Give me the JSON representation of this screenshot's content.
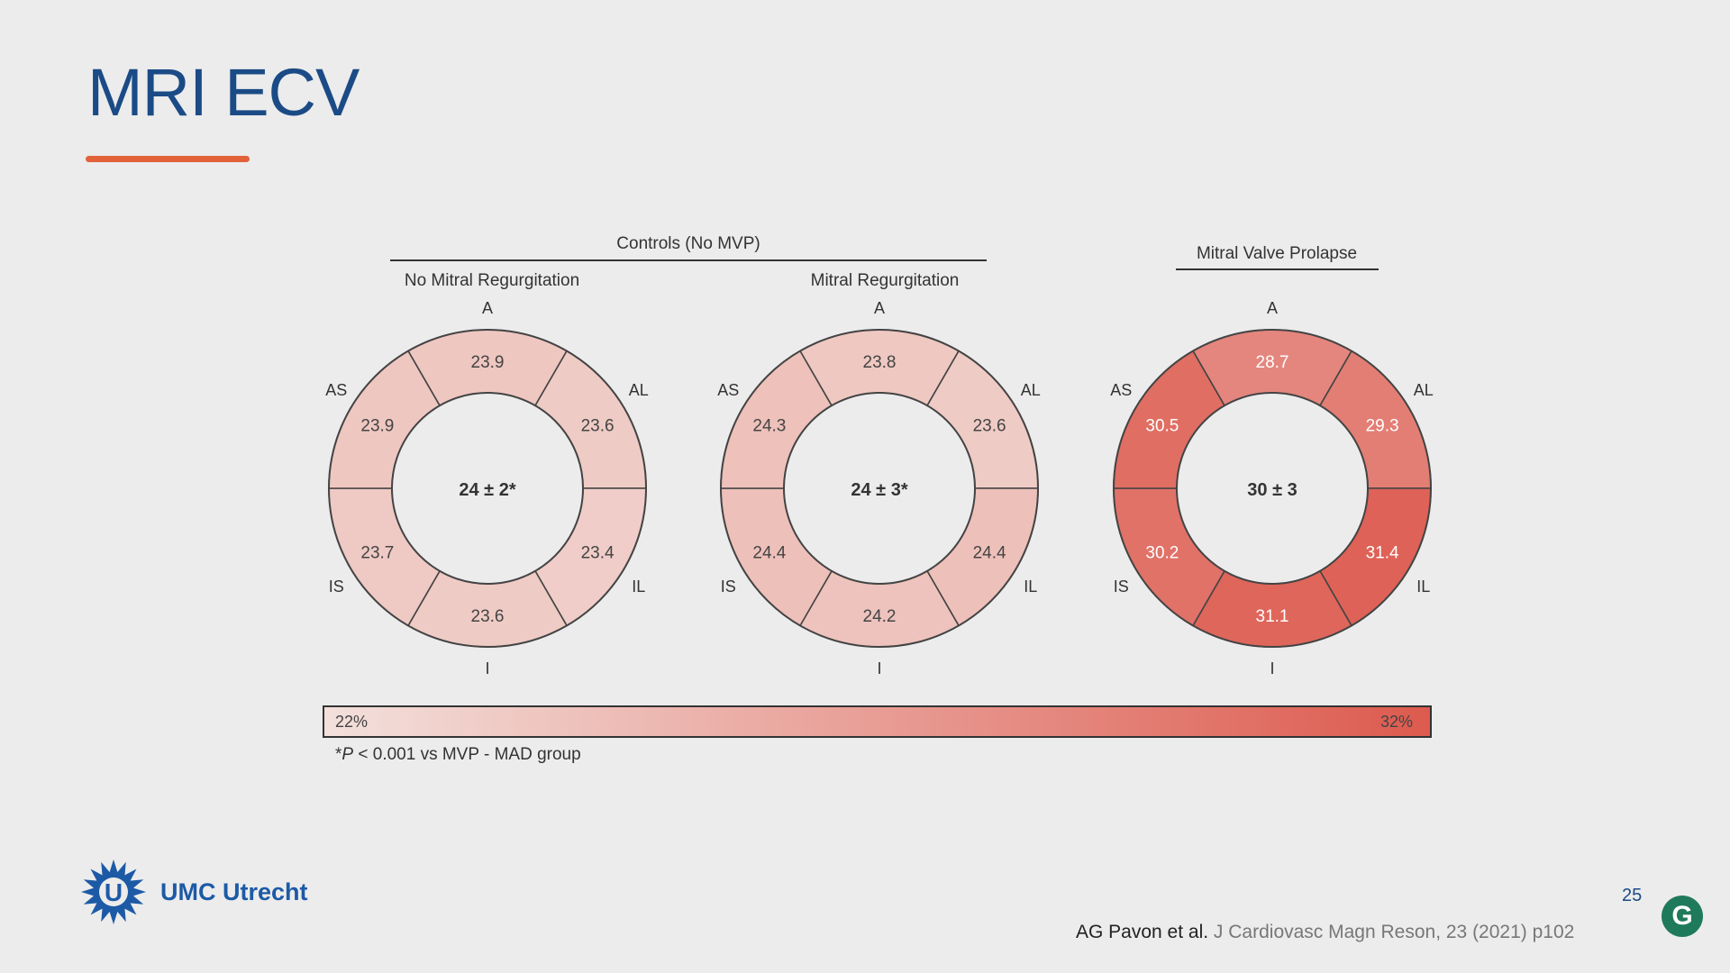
{
  "slide": {
    "title": "MRI ECV",
    "page_number": "25"
  },
  "group_headers": {
    "controls": "Controls (No MVP)",
    "mvp": "Mitral Valve Prolapse"
  },
  "direction_labels": [
    "A",
    "AL",
    "IL",
    "I",
    "IS",
    "AS"
  ],
  "colors": {
    "title": "#1b4b86",
    "accent": "#e2623a",
    "scale_low": "#f3e0dc",
    "scale_high": "#dd5a4e"
  },
  "chart_data": {
    "type": "polar-segments",
    "color_scale": {
      "min": 22,
      "max": 32,
      "min_label": "22%",
      "max_label": "32%"
    },
    "segments_order": [
      "A",
      "AL",
      "IL",
      "I",
      "IS",
      "AS"
    ],
    "charts": [
      {
        "subtitle": "No Mitral Regurgitation",
        "center": "24 ± 2*",
        "values": {
          "A": 23.9,
          "AL": 23.6,
          "IL": 23.4,
          "I": 23.6,
          "IS": 23.7,
          "AS": 23.9
        },
        "value_labels": {
          "A": "23.9",
          "AL": "23.6",
          "IL": "23.4",
          "I": "23.6",
          "IS": "23.7",
          "AS": "23.9"
        }
      },
      {
        "subtitle": "Mitral Regurgitation",
        "center": "24 ± 3*",
        "values": {
          "A": 23.8,
          "AL": 23.6,
          "IL": 24.4,
          "I": 24.2,
          "IS": 24.4,
          "AS": 24.3
        },
        "value_labels": {
          "A": "23.8",
          "AL": "23.6",
          "IL": "24.4",
          "I": "24.2",
          "IS": "24.4",
          "AS": "24.3"
        }
      },
      {
        "subtitle": "",
        "center": "30 ± 3",
        "values": {
          "A": 28.7,
          "AL": 29.3,
          "IL": 31.4,
          "I": 31.1,
          "IS": 30.2,
          "AS": 30.5
        },
        "value_labels": {
          "A": "28.7",
          "AL": "29.3",
          "IL": "31.4",
          "I": "31.1",
          "IS": "30.2",
          "AS": "30.5"
        }
      }
    ]
  },
  "footnote": {
    "star": "*",
    "p": "P",
    "rest": " < 0.001 vs MVP - MAD group"
  },
  "logo": {
    "text": "UMC Utrecht",
    "mark": "U"
  },
  "citation": {
    "authors": "AG Pavon et al.",
    "journal": " J Cardiovasc Magn Reson, 23 (2021) p102"
  },
  "app_icon": {
    "letter": "G"
  }
}
